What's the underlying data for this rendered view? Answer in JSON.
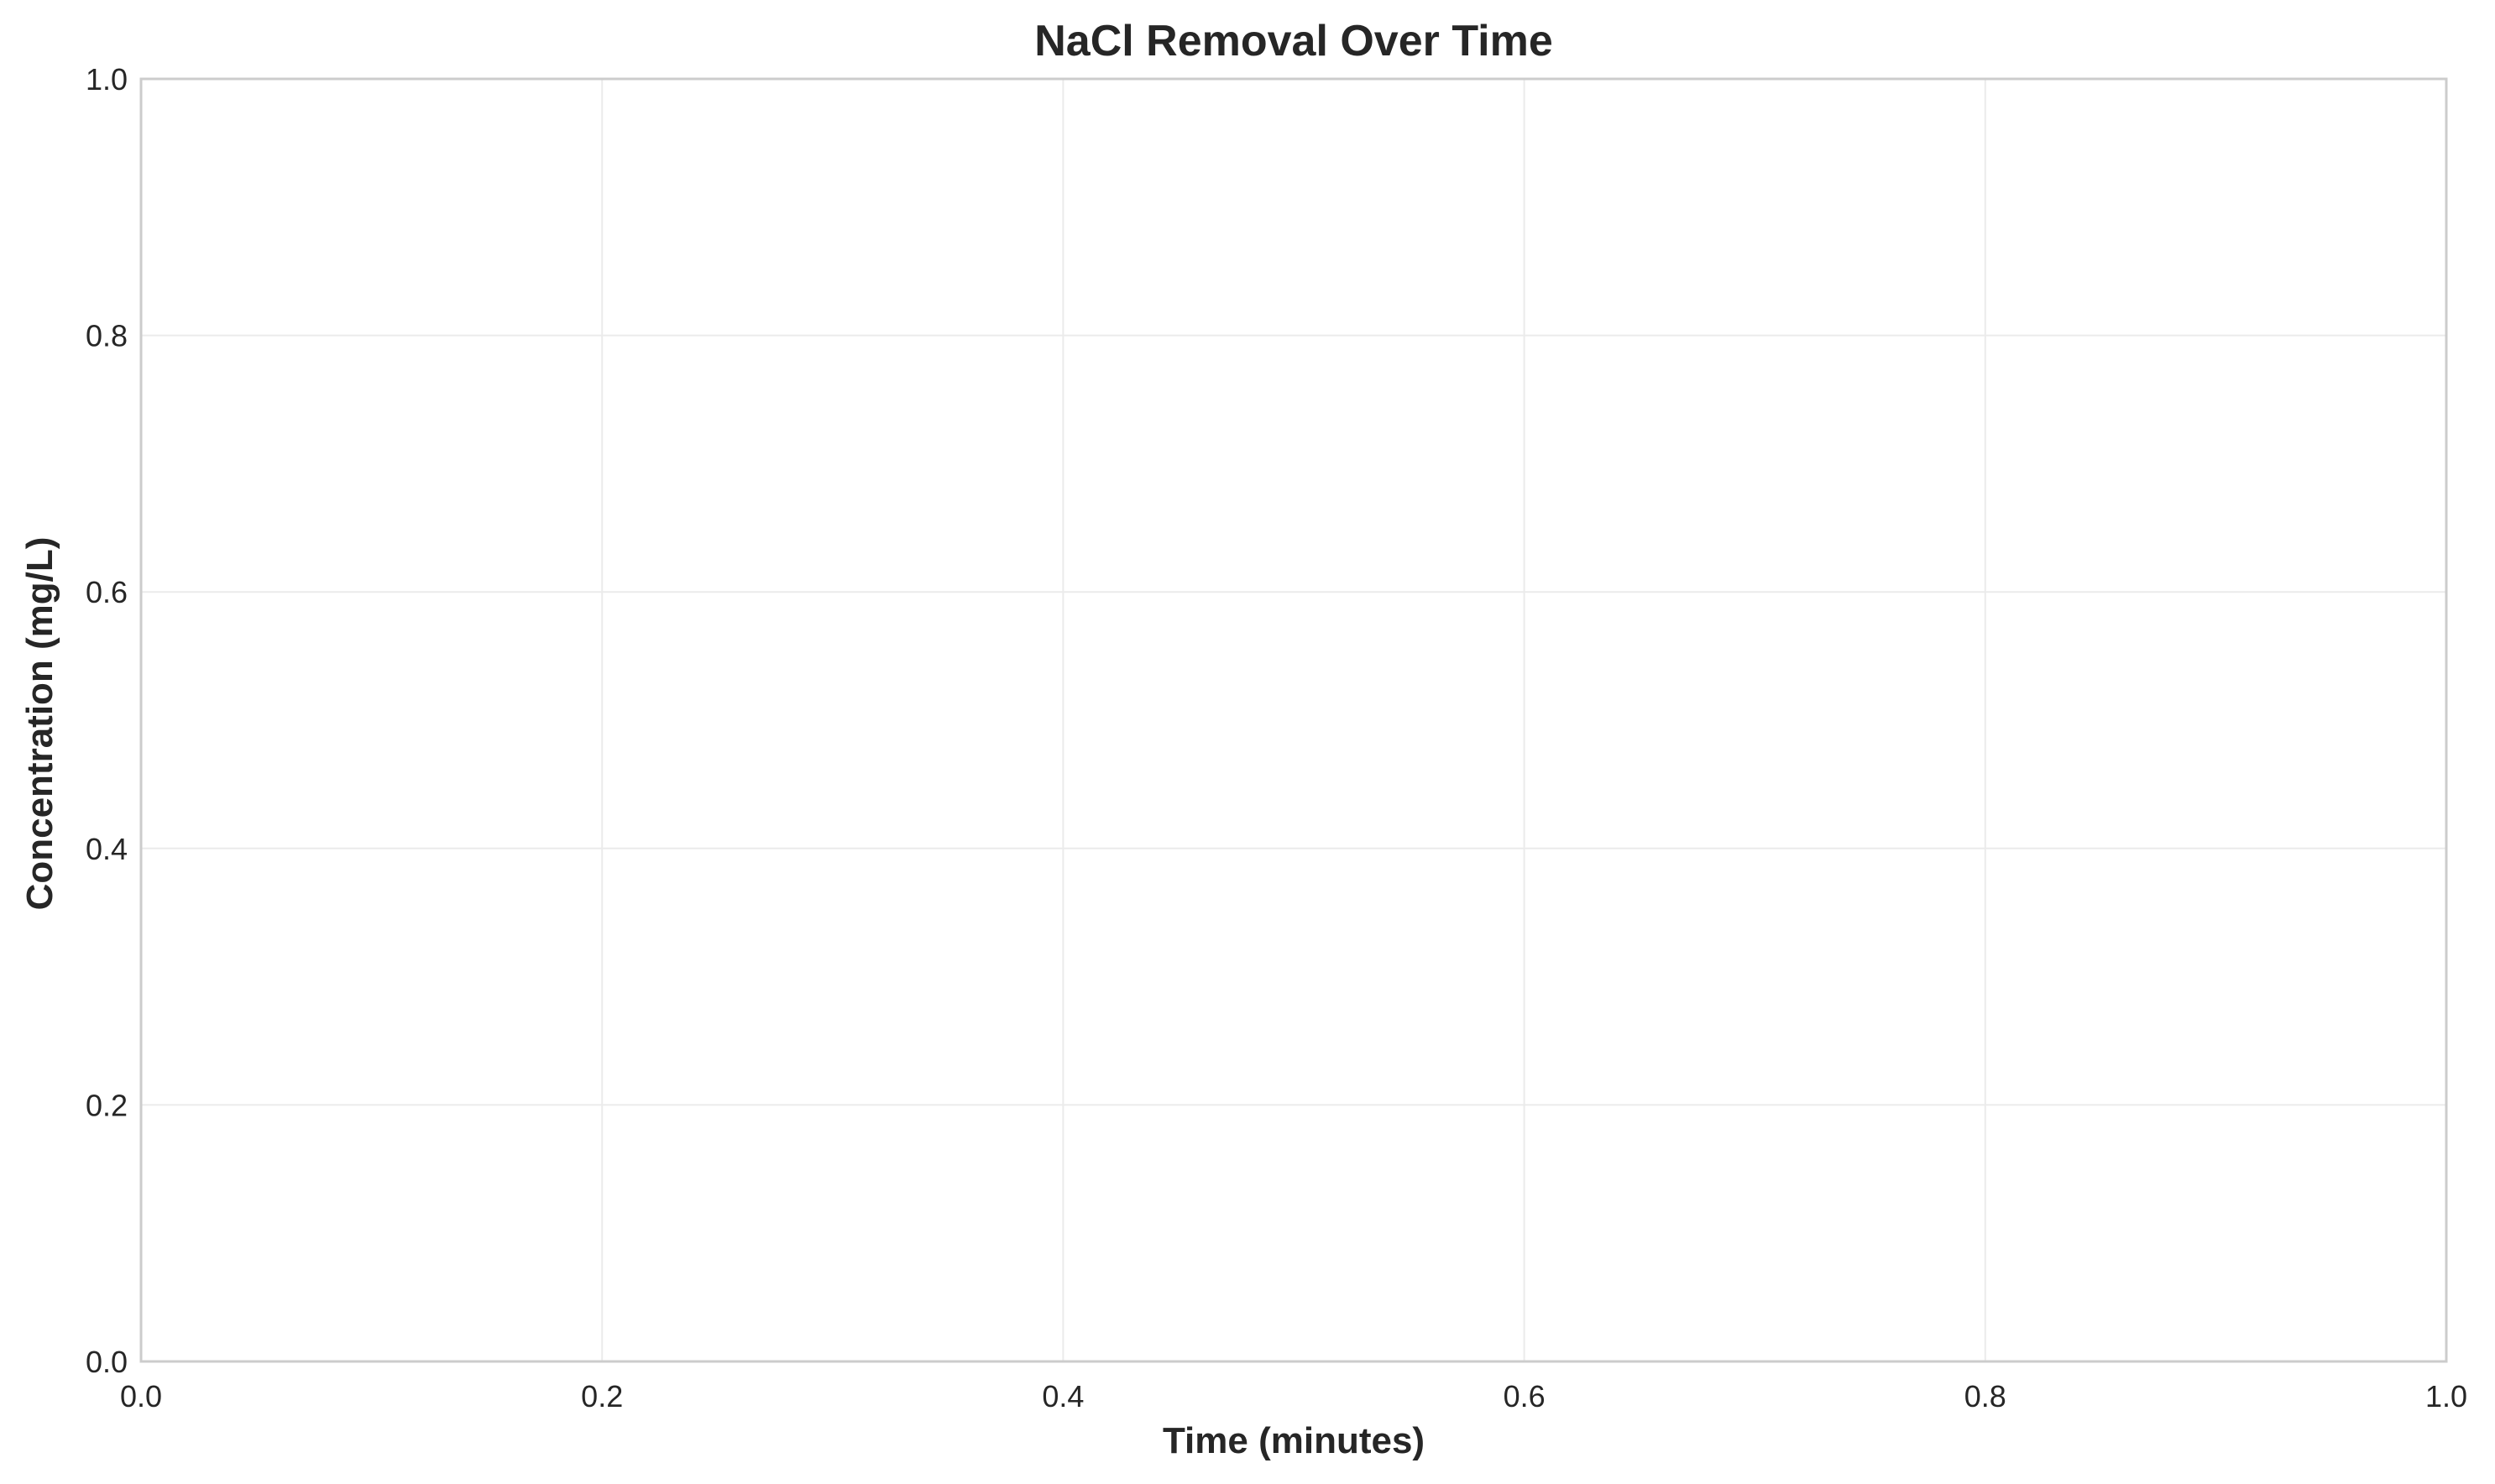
{
  "chart_data": {
    "type": "line",
    "title": "NaCl Removal Over Time",
    "xlabel": "Time (minutes)",
    "ylabel": "Concentration (mg/L)",
    "xlim": [
      0.0,
      1.0
    ],
    "ylim": [
      0.0,
      1.0
    ],
    "x_ticks": [
      "0.0",
      "0.2",
      "0.4",
      "0.6",
      "0.8",
      "1.0"
    ],
    "y_ticks": [
      "0.0",
      "0.2",
      "0.4",
      "0.6",
      "0.8",
      "1.0"
    ],
    "series": [],
    "grid": true,
    "legend": "none",
    "colors": {
      "grid": "#ebebeb",
      "spine": "#cccccc",
      "text": "#262626",
      "background": "#ffffff"
    }
  }
}
